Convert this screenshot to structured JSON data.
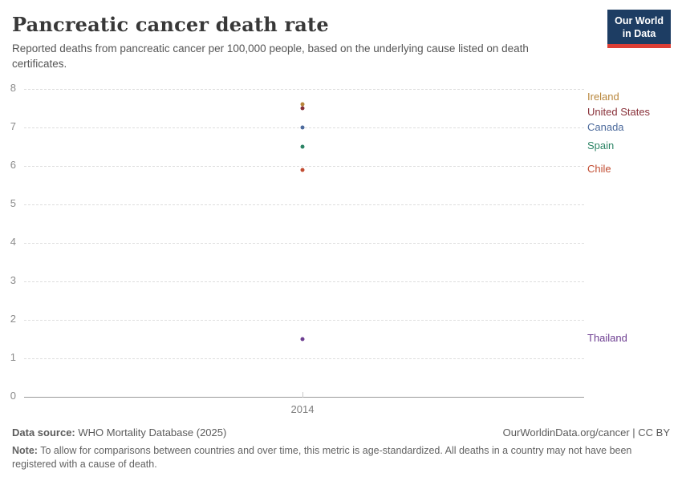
{
  "header": {
    "title": "Pancreatic cancer death rate",
    "subtitle": "Reported deaths from pancreatic cancer per 100,000 people, based on the underlying cause listed on death certificates.",
    "logo": {
      "line1": "Our World",
      "line2": "in Data",
      "bg_color": "#1D3D63",
      "bar_color": "#DC3E35"
    }
  },
  "chart_data": {
    "type": "scatter",
    "x": [
      2014
    ],
    "xticks": [
      "2014"
    ],
    "yticks": [
      0,
      1,
      2,
      3,
      4,
      5,
      6,
      7,
      8
    ],
    "ylim": [
      0,
      8
    ],
    "grid": "horizontal-dashed",
    "legend_position": "right-entity-labels",
    "title": "Pancreatic cancer death rate",
    "xlabel": "",
    "ylabel": "",
    "series": [
      {
        "name": "Ireland",
        "values": [
          7.6
        ],
        "color": "#B8863B"
      },
      {
        "name": "United States",
        "values": [
          7.5
        ],
        "color": "#883039"
      },
      {
        "name": "Canada",
        "values": [
          7.0
        ],
        "color": "#4C6A9C"
      },
      {
        "name": "Spain",
        "values": [
          6.5
        ],
        "color": "#2C8465"
      },
      {
        "name": "Chile",
        "values": [
          5.9
        ],
        "color": "#C24D32"
      },
      {
        "name": "Thailand",
        "values": [
          1.5
        ],
        "color": "#6D3E91"
      }
    ]
  },
  "footer": {
    "source_label": "Data source:",
    "source_text": " WHO Mortality Database (2025)",
    "license_text": "OurWorldinData.org/cancer | CC BY",
    "note_label": "Note:",
    "note_text": " To allow for comparisons between countries and over time, this metric is age-standardized. All deaths in a country may not have been registered with a cause of death."
  }
}
